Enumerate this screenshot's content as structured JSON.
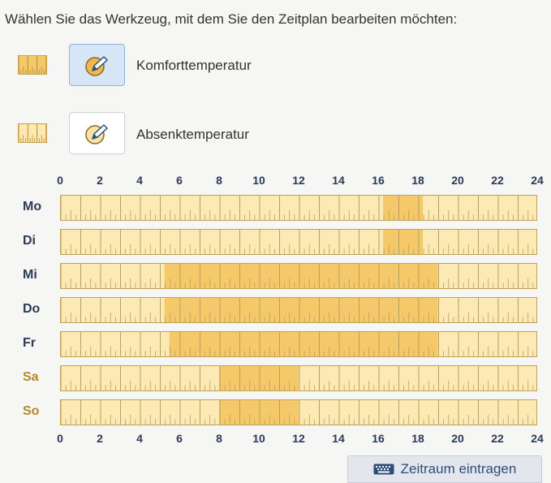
{
  "instruction": "Wählen Sie das Werkzeug, mit dem Sie den Zeitplan bearbeiten möchten:",
  "tools": [
    {
      "label": "Komforttemperatur",
      "selected": true
    },
    {
      "label": "Absenktemperatur",
      "selected": false
    }
  ],
  "colors": {
    "comfort": "#f5c86a",
    "setback": "#fde9b4",
    "selected_bg": "#d7e6f7"
  },
  "axis_ticks": [
    "0",
    "2",
    "4",
    "6",
    "8",
    "10",
    "12",
    "14",
    "16",
    "18",
    "20",
    "22",
    "24"
  ],
  "days": [
    {
      "label": "Mo",
      "weekend": false,
      "comfort": [
        [
          16.25,
          18.25
        ]
      ]
    },
    {
      "label": "Di",
      "weekend": false,
      "comfort": [
        [
          16.25,
          18.25
        ]
      ]
    },
    {
      "label": "Mi",
      "weekend": false,
      "comfort": [
        [
          5.25,
          19.0
        ]
      ]
    },
    {
      "label": "Do",
      "weekend": false,
      "comfort": [
        [
          5.25,
          19.0
        ]
      ]
    },
    {
      "label": "Fr",
      "weekend": false,
      "comfort": [
        [
          5.5,
          19.0
        ]
      ]
    },
    {
      "label": "Sa",
      "weekend": true,
      "comfort": [
        [
          8.0,
          12.0
        ]
      ]
    },
    {
      "label": "So",
      "weekend": true,
      "comfort": [
        [
          8.0,
          12.0
        ]
      ]
    }
  ],
  "enter_button": {
    "icon": "keyboard-icon",
    "label": "Zeitraum eintragen"
  }
}
